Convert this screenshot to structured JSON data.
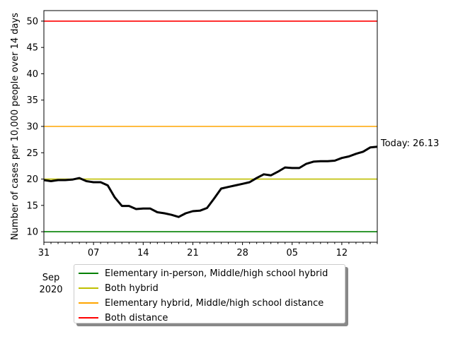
{
  "chart_data": {
    "type": "line",
    "title": "",
    "xlabel": "",
    "ylabel": "Number of cases per 10,000 people over 14 days",
    "ylim": [
      8,
      52
    ],
    "yticks": [
      10,
      15,
      20,
      25,
      30,
      35,
      40,
      45,
      50
    ],
    "xlim": [
      0,
      47
    ],
    "x_major_ticks": [
      {
        "x": 0,
        "label": "31"
      },
      {
        "x": 7,
        "label": "07"
      },
      {
        "x": 14,
        "label": "14"
      },
      {
        "x": 21,
        "label": "21"
      },
      {
        "x": 28,
        "label": "28"
      },
      {
        "x": 35,
        "label": "05"
      },
      {
        "x": 42,
        "label": "12"
      }
    ],
    "x_minor_ticks": [
      1,
      2,
      3,
      4,
      5,
      6,
      8,
      9,
      10,
      11,
      12,
      13,
      15,
      16,
      17,
      18,
      19,
      20,
      22,
      23,
      24,
      25,
      26,
      27,
      29,
      30,
      31,
      32,
      33,
      34,
      36,
      37,
      38,
      39,
      40,
      41,
      43,
      44,
      45,
      46,
      47
    ],
    "x_secondary_label_line1": "Sep",
    "x_secondary_label_line2": "2020",
    "grid": false,
    "legend_placement": "below",
    "thresholds": [
      {
        "name": "Elementary in-person, Middle/high school hybrid",
        "value": 10,
        "color": "#008000"
      },
      {
        "name": "Both hybrid",
        "value": 20,
        "color": "#bfbf00"
      },
      {
        "name": "Elementary hybrid, Middle/high school distance",
        "value": 30,
        "color": "#ffa500"
      },
      {
        "name": "Both distance",
        "value": 50,
        "color": "#ff0000"
      }
    ],
    "series": [
      {
        "color": "#000000",
        "x": [
          0,
          1,
          2,
          3,
          4,
          5,
          6,
          7,
          8,
          9,
          10,
          11,
          12,
          13,
          14,
          15,
          16,
          17,
          18,
          19,
          20,
          21,
          22,
          23,
          24,
          25,
          26,
          27,
          28,
          29,
          30,
          31,
          32,
          33,
          34,
          35,
          36,
          37,
          38,
          39,
          40,
          41,
          42,
          43,
          44,
          45,
          46,
          47
        ],
        "values": [
          19.8,
          19.6,
          19.8,
          19.8,
          19.9,
          20.2,
          19.6,
          19.4,
          19.4,
          18.8,
          16.5,
          14.9,
          14.9,
          14.3,
          14.4,
          14.4,
          13.7,
          13.5,
          13.2,
          12.8,
          13.5,
          13.9,
          14.0,
          14.5,
          16.3,
          18.2,
          18.5,
          18.8,
          19.1,
          19.4,
          20.2,
          20.9,
          20.7,
          21.4,
          22.2,
          22.1,
          22.1,
          22.9,
          23.3,
          23.4,
          23.4,
          23.5,
          24.0,
          24.3,
          24.8,
          25.2,
          26.0,
          26.13
        ]
      }
    ],
    "annotation": "Today: 26.13"
  }
}
